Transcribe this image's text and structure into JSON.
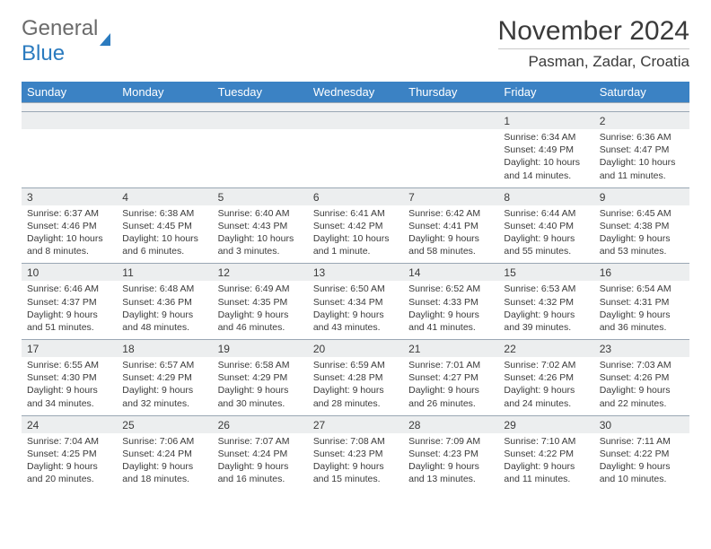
{
  "logo": {
    "word1": "General",
    "word2": "Blue"
  },
  "title": "November 2024",
  "location": "Pasman, Zadar, Croatia",
  "day_headers": [
    "Sunday",
    "Monday",
    "Tuesday",
    "Wednesday",
    "Thursday",
    "Friday",
    "Saturday"
  ],
  "colors": {
    "header_bg": "#3b82c4",
    "header_fg": "#ffffff",
    "num_row_bg": "#eceeef",
    "gap_bg": "#f0f1f2",
    "border": "#9aa7b4",
    "text": "#3a3a3a",
    "logo_gray": "#6b6b6b",
    "logo_blue": "#2b7bbf"
  },
  "weeks": [
    [
      null,
      null,
      null,
      null,
      null,
      {
        "num": "1",
        "sunrise": "Sunrise: 6:34 AM",
        "sunset": "Sunset: 4:49 PM",
        "daylight": "Daylight: 10 hours and 14 minutes."
      },
      {
        "num": "2",
        "sunrise": "Sunrise: 6:36 AM",
        "sunset": "Sunset: 4:47 PM",
        "daylight": "Daylight: 10 hours and 11 minutes."
      }
    ],
    [
      {
        "num": "3",
        "sunrise": "Sunrise: 6:37 AM",
        "sunset": "Sunset: 4:46 PM",
        "daylight": "Daylight: 10 hours and 8 minutes."
      },
      {
        "num": "4",
        "sunrise": "Sunrise: 6:38 AM",
        "sunset": "Sunset: 4:45 PM",
        "daylight": "Daylight: 10 hours and 6 minutes."
      },
      {
        "num": "5",
        "sunrise": "Sunrise: 6:40 AM",
        "sunset": "Sunset: 4:43 PM",
        "daylight": "Daylight: 10 hours and 3 minutes."
      },
      {
        "num": "6",
        "sunrise": "Sunrise: 6:41 AM",
        "sunset": "Sunset: 4:42 PM",
        "daylight": "Daylight: 10 hours and 1 minute."
      },
      {
        "num": "7",
        "sunrise": "Sunrise: 6:42 AM",
        "sunset": "Sunset: 4:41 PM",
        "daylight": "Daylight: 9 hours and 58 minutes."
      },
      {
        "num": "8",
        "sunrise": "Sunrise: 6:44 AM",
        "sunset": "Sunset: 4:40 PM",
        "daylight": "Daylight: 9 hours and 55 minutes."
      },
      {
        "num": "9",
        "sunrise": "Sunrise: 6:45 AM",
        "sunset": "Sunset: 4:38 PM",
        "daylight": "Daylight: 9 hours and 53 minutes."
      }
    ],
    [
      {
        "num": "10",
        "sunrise": "Sunrise: 6:46 AM",
        "sunset": "Sunset: 4:37 PM",
        "daylight": "Daylight: 9 hours and 51 minutes."
      },
      {
        "num": "11",
        "sunrise": "Sunrise: 6:48 AM",
        "sunset": "Sunset: 4:36 PM",
        "daylight": "Daylight: 9 hours and 48 minutes."
      },
      {
        "num": "12",
        "sunrise": "Sunrise: 6:49 AM",
        "sunset": "Sunset: 4:35 PM",
        "daylight": "Daylight: 9 hours and 46 minutes."
      },
      {
        "num": "13",
        "sunrise": "Sunrise: 6:50 AM",
        "sunset": "Sunset: 4:34 PM",
        "daylight": "Daylight: 9 hours and 43 minutes."
      },
      {
        "num": "14",
        "sunrise": "Sunrise: 6:52 AM",
        "sunset": "Sunset: 4:33 PM",
        "daylight": "Daylight: 9 hours and 41 minutes."
      },
      {
        "num": "15",
        "sunrise": "Sunrise: 6:53 AM",
        "sunset": "Sunset: 4:32 PM",
        "daylight": "Daylight: 9 hours and 39 minutes."
      },
      {
        "num": "16",
        "sunrise": "Sunrise: 6:54 AM",
        "sunset": "Sunset: 4:31 PM",
        "daylight": "Daylight: 9 hours and 36 minutes."
      }
    ],
    [
      {
        "num": "17",
        "sunrise": "Sunrise: 6:55 AM",
        "sunset": "Sunset: 4:30 PM",
        "daylight": "Daylight: 9 hours and 34 minutes."
      },
      {
        "num": "18",
        "sunrise": "Sunrise: 6:57 AM",
        "sunset": "Sunset: 4:29 PM",
        "daylight": "Daylight: 9 hours and 32 minutes."
      },
      {
        "num": "19",
        "sunrise": "Sunrise: 6:58 AM",
        "sunset": "Sunset: 4:29 PM",
        "daylight": "Daylight: 9 hours and 30 minutes."
      },
      {
        "num": "20",
        "sunrise": "Sunrise: 6:59 AM",
        "sunset": "Sunset: 4:28 PM",
        "daylight": "Daylight: 9 hours and 28 minutes."
      },
      {
        "num": "21",
        "sunrise": "Sunrise: 7:01 AM",
        "sunset": "Sunset: 4:27 PM",
        "daylight": "Daylight: 9 hours and 26 minutes."
      },
      {
        "num": "22",
        "sunrise": "Sunrise: 7:02 AM",
        "sunset": "Sunset: 4:26 PM",
        "daylight": "Daylight: 9 hours and 24 minutes."
      },
      {
        "num": "23",
        "sunrise": "Sunrise: 7:03 AM",
        "sunset": "Sunset: 4:26 PM",
        "daylight": "Daylight: 9 hours and 22 minutes."
      }
    ],
    [
      {
        "num": "24",
        "sunrise": "Sunrise: 7:04 AM",
        "sunset": "Sunset: 4:25 PM",
        "daylight": "Daylight: 9 hours and 20 minutes."
      },
      {
        "num": "25",
        "sunrise": "Sunrise: 7:06 AM",
        "sunset": "Sunset: 4:24 PM",
        "daylight": "Daylight: 9 hours and 18 minutes."
      },
      {
        "num": "26",
        "sunrise": "Sunrise: 7:07 AM",
        "sunset": "Sunset: 4:24 PM",
        "daylight": "Daylight: 9 hours and 16 minutes."
      },
      {
        "num": "27",
        "sunrise": "Sunrise: 7:08 AM",
        "sunset": "Sunset: 4:23 PM",
        "daylight": "Daylight: 9 hours and 15 minutes."
      },
      {
        "num": "28",
        "sunrise": "Sunrise: 7:09 AM",
        "sunset": "Sunset: 4:23 PM",
        "daylight": "Daylight: 9 hours and 13 minutes."
      },
      {
        "num": "29",
        "sunrise": "Sunrise: 7:10 AM",
        "sunset": "Sunset: 4:22 PM",
        "daylight": "Daylight: 9 hours and 11 minutes."
      },
      {
        "num": "30",
        "sunrise": "Sunrise: 7:11 AM",
        "sunset": "Sunset: 4:22 PM",
        "daylight": "Daylight: 9 hours and 10 minutes."
      }
    ]
  ]
}
